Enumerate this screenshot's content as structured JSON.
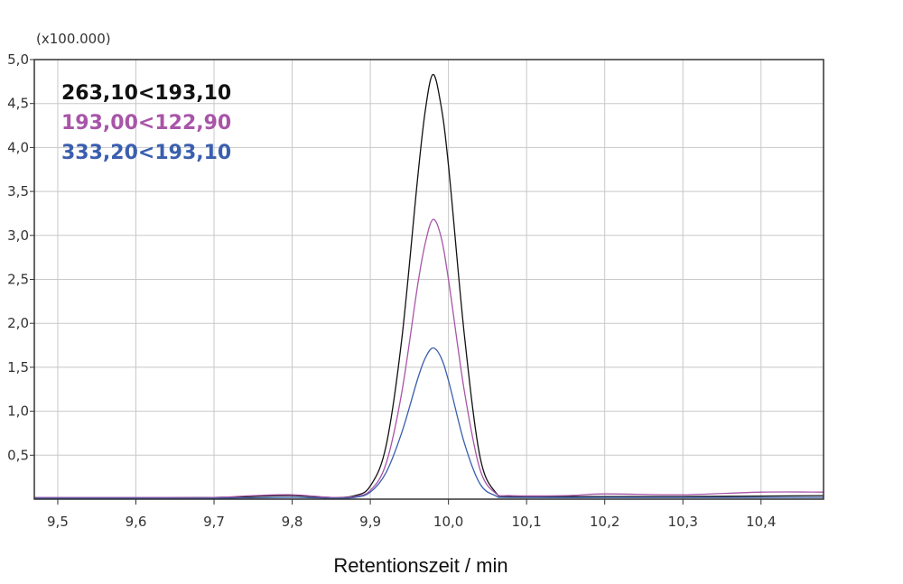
{
  "chart_data": {
    "type": "line",
    "multiplier_label": "(x100.000)",
    "xlabel": "Retentionszeit / min",
    "ylabel": "",
    "xlim": [
      9.47,
      10.48
    ],
    "ylim": [
      0,
      5.0
    ],
    "grid": true,
    "legend_position": "top-left",
    "x_ticks": [
      9.5,
      9.6,
      9.7,
      9.8,
      9.9,
      10.0,
      10.1,
      10.2,
      10.3,
      10.4
    ],
    "x_tick_labels": [
      "9,5",
      "9,6",
      "9,7",
      "9,8",
      "9,9",
      "10,0",
      "10,1",
      "10,2",
      "10,3",
      "10,4"
    ],
    "y_ticks": [
      0.5,
      1.0,
      1.5,
      2.0,
      2.5,
      3.0,
      3.5,
      4.0,
      4.5,
      5.0
    ],
    "y_tick_labels": [
      "0,5",
      "1,0",
      "1,5",
      "2,0",
      "2,5",
      "3,0",
      "3,5",
      "4,0",
      "4,5",
      "5,0"
    ],
    "series": [
      {
        "name": "263,10<193,10",
        "color": "#111111",
        "x": [
          9.47,
          9.6,
          9.7,
          9.75,
          9.8,
          9.85,
          9.88,
          9.9,
          9.92,
          9.94,
          9.96,
          9.97,
          9.98,
          9.99,
          10.0,
          10.02,
          10.04,
          10.06,
          10.08,
          10.15,
          10.3,
          10.48
        ],
        "y": [
          0.02,
          0.02,
          0.02,
          0.03,
          0.04,
          0.02,
          0.04,
          0.15,
          0.6,
          1.8,
          3.6,
          4.4,
          4.83,
          4.5,
          3.8,
          1.9,
          0.5,
          0.08,
          0.03,
          0.03,
          0.03,
          0.04
        ]
      },
      {
        "name": "193,00<122,90",
        "color": "#a855a8",
        "x": [
          9.47,
          9.6,
          9.7,
          9.75,
          9.8,
          9.85,
          9.88,
          9.9,
          9.92,
          9.94,
          9.96,
          9.97,
          9.98,
          9.99,
          10.0,
          10.02,
          10.04,
          10.06,
          10.08,
          10.15,
          10.2,
          10.3,
          10.4,
          10.48
        ],
        "y": [
          0.02,
          0.02,
          0.02,
          0.04,
          0.05,
          0.02,
          0.03,
          0.1,
          0.4,
          1.2,
          2.4,
          2.9,
          3.18,
          3.0,
          2.5,
          1.25,
          0.35,
          0.07,
          0.04,
          0.04,
          0.06,
          0.05,
          0.08,
          0.08
        ]
      },
      {
        "name": "333,20<193,10",
        "color": "#3a5fae",
        "x": [
          9.47,
          9.6,
          9.7,
          9.8,
          9.85,
          9.88,
          9.9,
          9.92,
          9.94,
          9.96,
          9.97,
          9.98,
          9.99,
          10.0,
          10.02,
          10.04,
          10.06,
          10.08,
          10.2,
          10.3,
          10.48
        ],
        "y": [
          0.01,
          0.01,
          0.01,
          0.02,
          0.01,
          0.02,
          0.08,
          0.3,
          0.75,
          1.35,
          1.6,
          1.72,
          1.62,
          1.35,
          0.65,
          0.18,
          0.04,
          0.02,
          0.02,
          0.02,
          0.02
        ]
      }
    ]
  }
}
